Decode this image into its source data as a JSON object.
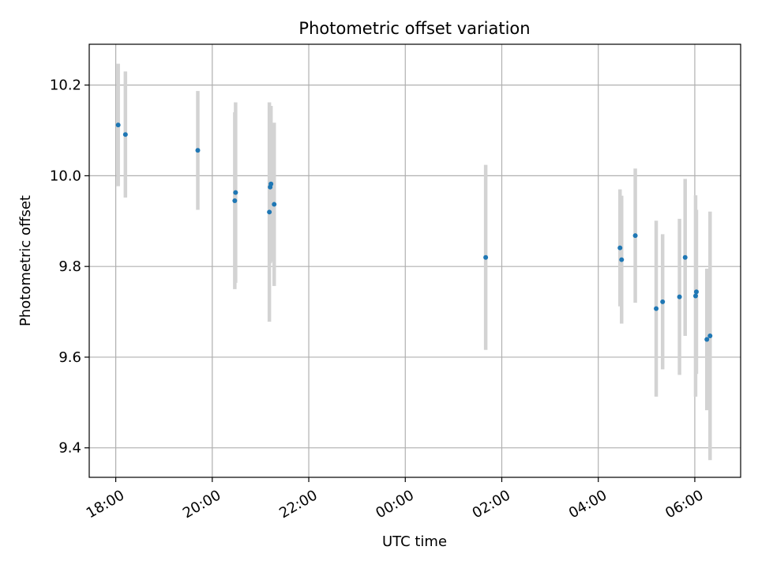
{
  "chart_data": {
    "type": "scatter",
    "title": "Photometric offset variation",
    "xlabel": "UTC time",
    "ylabel": "Photometric offset",
    "x_tick_labels": [
      "18:00",
      "20:00",
      "22:00",
      "00:00",
      "02:00",
      "04:00",
      "06:00"
    ],
    "y_tick_labels": [
      "9.4",
      "9.6",
      "9.8",
      "10.0",
      "10.2"
    ],
    "y_ticks": [
      9.4,
      9.6,
      9.8,
      10.0,
      10.2
    ],
    "ylim": [
      9.335,
      10.29
    ],
    "xlim_hours": [
      17.45,
      30.95
    ],
    "grid": true,
    "series": [
      {
        "color": "#1f77b4",
        "errorbar_color": "#d3d3d3",
        "points": [
          {
            "time": "18:03",
            "y": 10.112,
            "err": 0.135
          },
          {
            "time": "18:12",
            "y": 10.091,
            "err": 0.139
          },
          {
            "time": "19:42",
            "y": 10.056,
            "err": 0.131
          },
          {
            "time": "20:28",
            "y": 9.945,
            "err": 0.195
          },
          {
            "time": "20:29",
            "y": 9.963,
            "err": 0.199
          },
          {
            "time": "21:11",
            "y": 9.92,
            "err": 0.242
          },
          {
            "time": "21:12",
            "y": 9.975,
            "err": 0.168
          },
          {
            "time": "21:13",
            "y": 9.982,
            "err": 0.172
          },
          {
            "time": "21:17",
            "y": 9.937,
            "err": 0.18
          },
          {
            "time": "01:40",
            "y": 9.82,
            "err": 0.204
          },
          {
            "time": "04:27",
            "y": 9.841,
            "err": 0.129
          },
          {
            "time": "04:29",
            "y": 9.815,
            "err": 0.141
          },
          {
            "time": "04:46",
            "y": 9.868,
            "err": 0.148
          },
          {
            "time": "05:12",
            "y": 9.707,
            "err": 0.194
          },
          {
            "time": "05:20",
            "y": 9.722,
            "err": 0.149
          },
          {
            "time": "05:41",
            "y": 9.733,
            "err": 0.172
          },
          {
            "time": "05:48",
            "y": 9.82,
            "err": 0.173
          },
          {
            "time": "06:01",
            "y": 9.735,
            "err": 0.222
          },
          {
            "time": "06:02",
            "y": 9.744,
            "err": 0.181
          },
          {
            "time": "06:15",
            "y": 9.639,
            "err": 0.156
          },
          {
            "time": "06:19",
            "y": 9.647,
            "err": 0.274
          }
        ]
      }
    ]
  }
}
